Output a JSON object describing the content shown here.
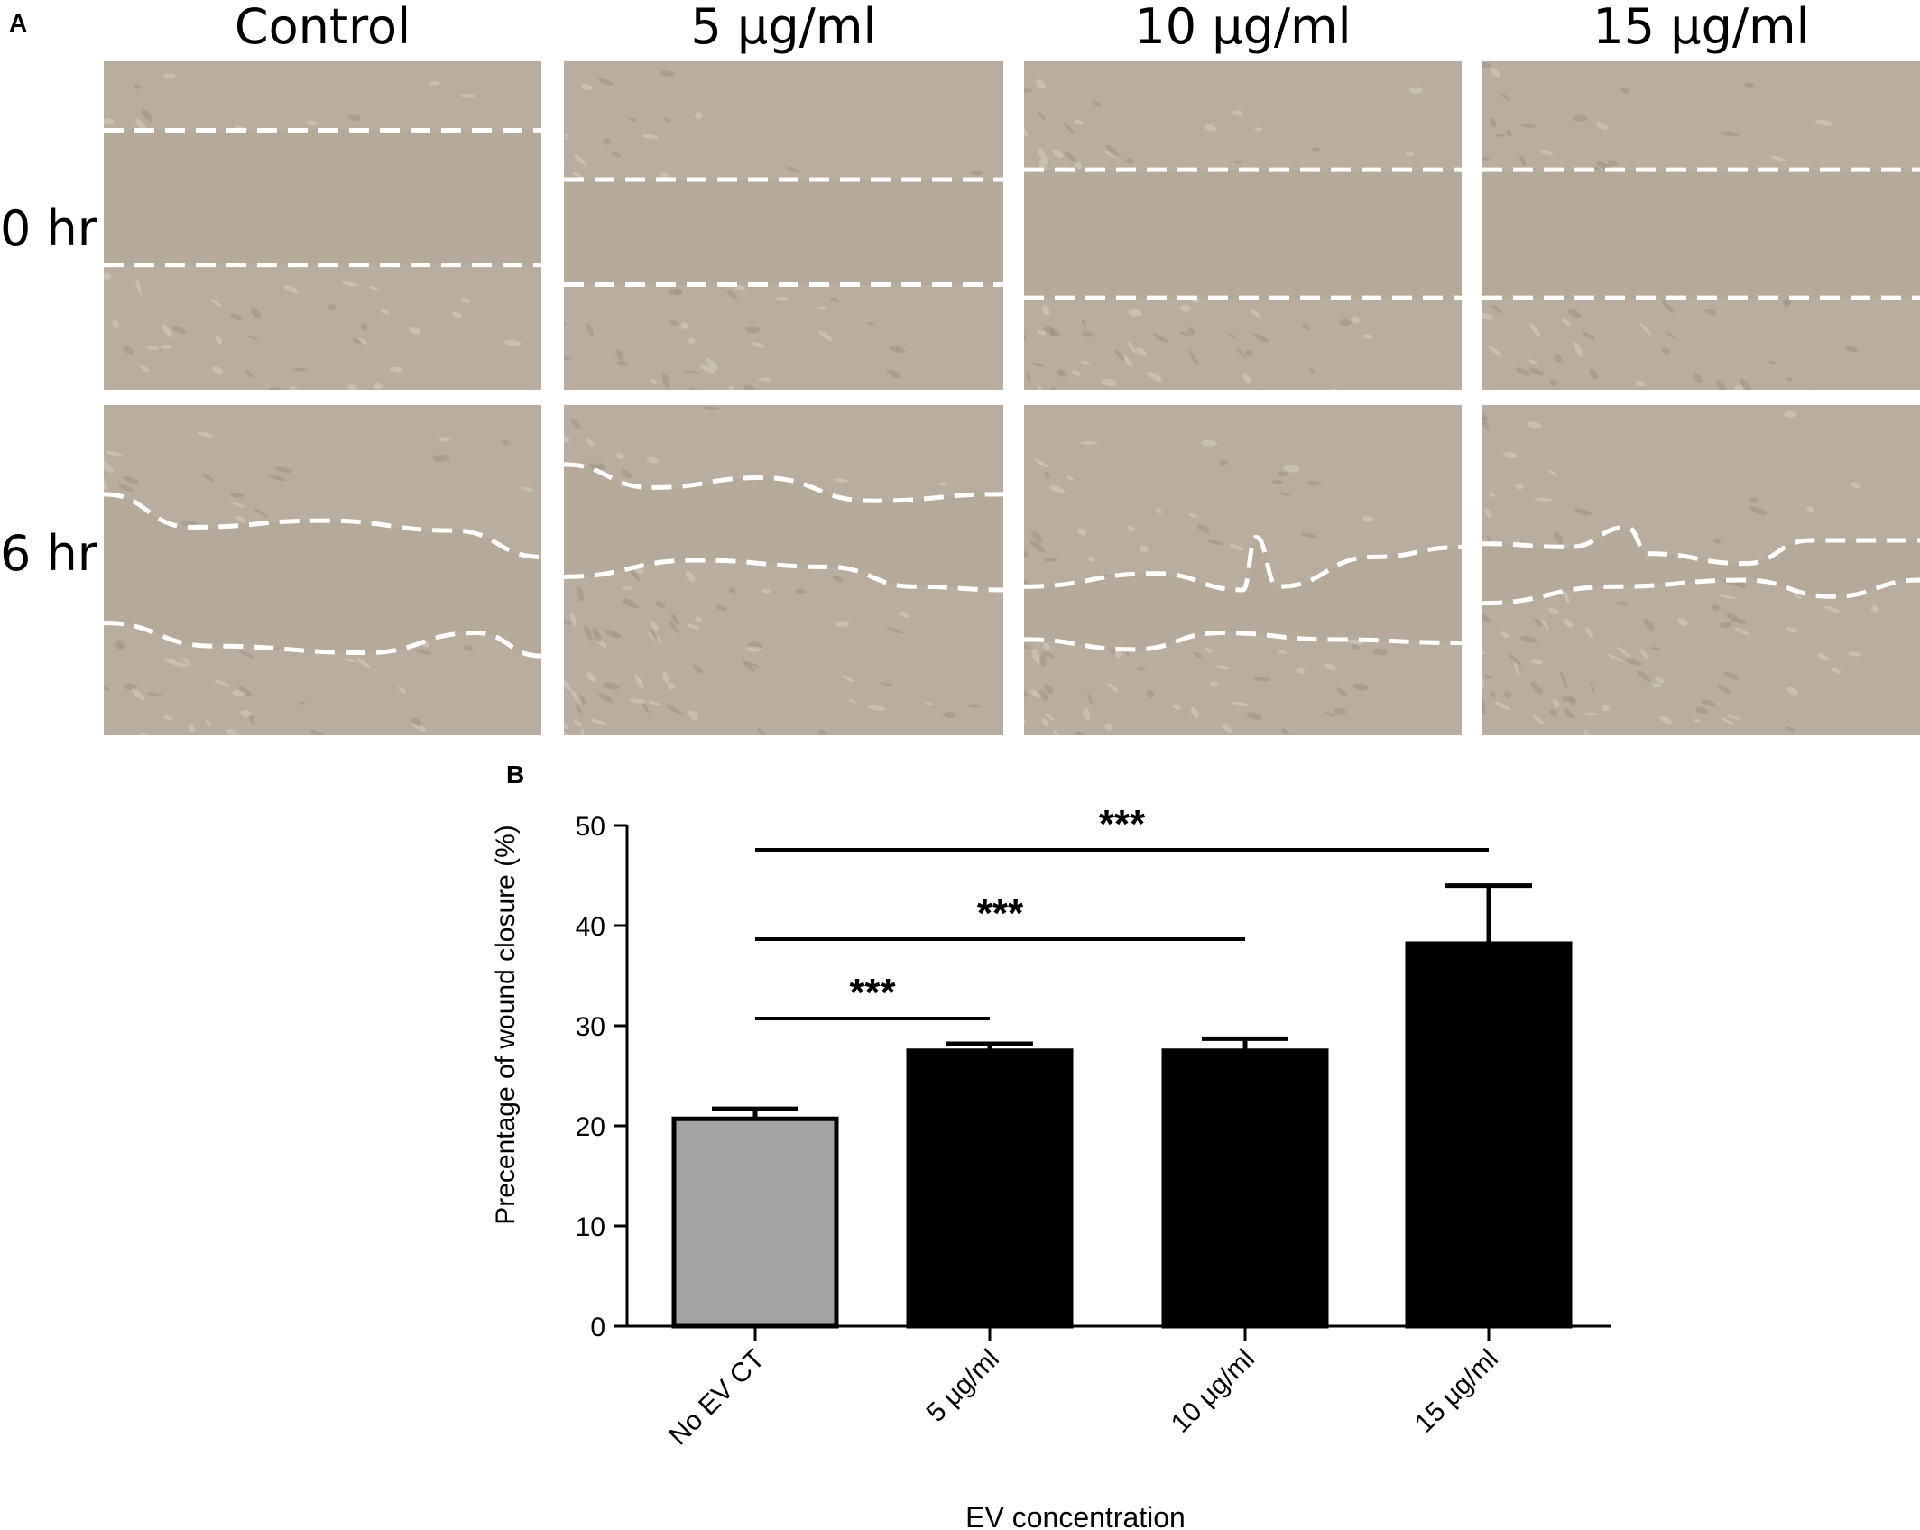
{
  "panel_a": {
    "letter": "A",
    "columns": [
      "Control",
      "5 μg/ml",
      "10 μg/ml",
      "15 μg/ml"
    ],
    "rows": [
      "0 hr",
      "6 hr"
    ]
  },
  "panel_b": {
    "letter": "B"
  },
  "chart_data": {
    "type": "bar",
    "categories": [
      "No EV CT",
      "5 μg/ml",
      "10 μg/ml",
      "15 μg/ml"
    ],
    "values": [
      20.7,
      27.5,
      27.5,
      38.2
    ],
    "errors": [
      1.0,
      0.7,
      1.2,
      5.8
    ],
    "bar_colors": [
      "#a3a3a3",
      "#000000",
      "#000000",
      "#000000"
    ],
    "xlabel": "EV concentration",
    "ylabel": "Precentage of wound closure (%)",
    "ylim": [
      0,
      50
    ],
    "yticks": [
      0,
      10,
      20,
      30,
      40,
      50
    ],
    "grid": false,
    "significance": [
      {
        "from": 0,
        "to": 1,
        "label": "***"
      },
      {
        "from": 0,
        "to": 2,
        "label": "***"
      },
      {
        "from": 0,
        "to": 3,
        "label": "***"
      }
    ]
  }
}
